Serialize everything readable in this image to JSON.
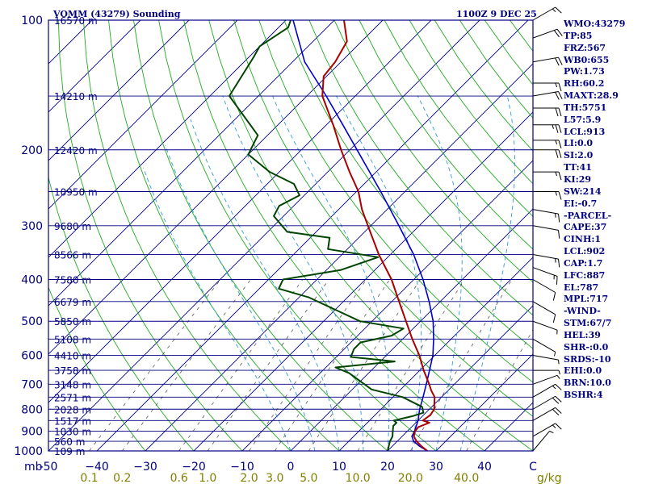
{
  "header": {
    "station": "VOMM (43279) Sounding",
    "time": "1100Z  9 DEC 25"
  },
  "colors": {
    "frame": "#000080",
    "dry_adiabat": "#22aa22",
    "moist_adiabat": "#3399dd",
    "mixing_ratio": "#444444",
    "temperature": "#aa0000",
    "dewpoint": "#004400",
    "parcel": "#0000cc",
    "moisture_label": "#808000"
  },
  "chart_data": {
    "type": "skew-t",
    "pressure_range": [
      1000,
      100
    ],
    "temp_range_bottom": [
      -50,
      50
    ],
    "pressure_ticks": [
      "100",
      "200",
      "300",
      "400",
      "500",
      "600",
      "700",
      "800",
      "900",
      "1000"
    ],
    "pressure_label_values": [
      100,
      200,
      300,
      400,
      500,
      600,
      700,
      800,
      900,
      1000
    ],
    "height_levels": [
      {
        "p": 100,
        "label": "16570 m"
      },
      {
        "p": 150,
        "label": "14210 m"
      },
      {
        "p": 200,
        "label": "12420 m"
      },
      {
        "p": 250,
        "label": "10950 m"
      },
      {
        "p": 300,
        "label": "9680 m"
      },
      {
        "p": 350,
        "label": "8566 m"
      },
      {
        "p": 400,
        "label": "7580 m"
      },
      {
        "p": 450,
        "label": "6679 m"
      },
      {
        "p": 500,
        "label": "5850 m"
      },
      {
        "p": 550,
        "label": "5108 m"
      },
      {
        "p": 600,
        "label": "4410 m"
      },
      {
        "p": 650,
        "label": "3758 m"
      },
      {
        "p": 700,
        "label": "3148 m"
      },
      {
        "p": 750,
        "label": "2571 m"
      },
      {
        "p": 800,
        "label": "2028 m"
      },
      {
        "p": 850,
        "label": "1517 m"
      },
      {
        "p": 900,
        "label": "1030 m"
      },
      {
        "p": 950,
        "label": "560 m"
      },
      {
        "p": 1000,
        "label": "109 m"
      }
    ],
    "temp_ticks": [
      {
        "t": -50,
        "label": "-50"
      },
      {
        "t": -40,
        "label": "−40"
      },
      {
        "t": -30,
        "label": "−30"
      },
      {
        "t": -20,
        "label": "−20"
      },
      {
        "t": -10,
        "label": "−10"
      },
      {
        "t": 0,
        "label": "0"
      },
      {
        "t": 10,
        "label": "10"
      },
      {
        "t": 20,
        "label": "20"
      },
      {
        "t": 30,
        "label": "30"
      },
      {
        "t": 40,
        "label": "40"
      },
      {
        "t": 50,
        "label": "C"
      }
    ],
    "pressure_unit": "mb",
    "mixing_ratio_unit": "g/kg",
    "mixing_ratios": [
      {
        "w": 0.1,
        "label": "0.1"
      },
      {
        "w": 0.2,
        "label": "0.2"
      },
      {
        "w": 0.6,
        "label": "0.6"
      },
      {
        "w": 1.0,
        "label": "1.0"
      },
      {
        "w": 2.0,
        "label": "2.0"
      },
      {
        "w": 3.0,
        "label": "3.0"
      },
      {
        "w": 5.0,
        "label": "5.0"
      },
      {
        "w": 10.0,
        "label": "10.0"
      },
      {
        "w": 20.0,
        "label": "20.0"
      },
      {
        "w": 40.0,
        "label": "40.0"
      }
    ],
    "temperature": [
      [
        1000,
        28.2
      ],
      [
        975,
        26.0
      ],
      [
        950,
        24.0
      ],
      [
        925,
        22.4
      ],
      [
        900,
        21.6
      ],
      [
        880,
        21.4
      ],
      [
        860,
        22.8
      ],
      [
        850,
        21.0
      ],
      [
        825,
        21.4
      ],
      [
        800,
        21.0
      ],
      [
        775,
        19.8
      ],
      [
        750,
        18.6
      ],
      [
        725,
        16.6
      ],
      [
        700,
        14.8
      ],
      [
        650,
        10.8
      ],
      [
        600,
        6.8
      ],
      [
        550,
        2.0
      ],
      [
        500,
        -3.0
      ],
      [
        450,
        -8.5
      ],
      [
        400,
        -14.6
      ],
      [
        350,
        -22.4
      ],
      [
        300,
        -30.6
      ],
      [
        275,
        -35.2
      ],
      [
        250,
        -39.6
      ],
      [
        225,
        -45.5
      ],
      [
        200,
        -51.8
      ],
      [
        175,
        -58.6
      ],
      [
        150,
        -66.8
      ],
      [
        135,
        -70.6
      ],
      [
        125,
        -71.2
      ],
      [
        112,
        -73.0
      ],
      [
        100,
        -78.0
      ]
    ],
    "dewpoint": [
      [
        1000,
        20.0
      ],
      [
        950,
        18.5
      ],
      [
        925,
        18.0
      ],
      [
        900,
        17.0
      ],
      [
        875,
        16.0
      ],
      [
        860,
        16.0
      ],
      [
        850,
        15.0
      ],
      [
        830,
        18.0
      ],
      [
        815,
        19.5
      ],
      [
        790,
        18.0
      ],
      [
        750,
        12.0
      ],
      [
        720,
        4.0
      ],
      [
        660,
        -4.0
      ],
      [
        640,
        -8.0
      ],
      [
        620,
        3.0
      ],
      [
        605,
        -7.0
      ],
      [
        580,
        -8.0
      ],
      [
        560,
        -8.0
      ],
      [
        540,
        -3.0
      ],
      [
        520,
        -2.0
      ],
      [
        500,
        -12.5
      ],
      [
        470,
        -20.0
      ],
      [
        440,
        -28.0
      ],
      [
        420,
        -36.0
      ],
      [
        400,
        -37.0
      ],
      [
        380,
        -27.0
      ],
      [
        355,
        -22.0
      ],
      [
        340,
        -34.0
      ],
      [
        320,
        -36.0
      ],
      [
        310,
        -46.0
      ],
      [
        285,
        -52.0
      ],
      [
        270,
        -53.0
      ],
      [
        255,
        -51.0
      ],
      [
        240,
        -54.5
      ],
      [
        225,
        -62.0
      ],
      [
        205,
        -70.0
      ],
      [
        185,
        -72.0
      ],
      [
        150,
        -86.0
      ],
      [
        122,
        -89.0
      ],
      [
        115,
        -90.0
      ],
      [
        104,
        -88.0
      ],
      [
        100,
        -89.0
      ]
    ],
    "parcel": [
      [
        1000,
        28.2
      ],
      [
        975,
        25.6
      ],
      [
        950,
        23.4
      ],
      [
        925,
        22.0
      ],
      [
        900,
        21.5
      ],
      [
        850,
        20.0
      ],
      [
        800,
        18.0
      ],
      [
        750,
        16.2
      ],
      [
        700,
        14.2
      ],
      [
        650,
        12.0
      ],
      [
        600,
        9.6
      ],
      [
        550,
        6.4
      ],
      [
        500,
        2.6
      ],
      [
        450,
        -2.3
      ],
      [
        400,
        -8.1
      ],
      [
        350,
        -15.2
      ],
      [
        300,
        -24.2
      ],
      [
        250,
        -35.0
      ],
      [
        200,
        -48.5
      ],
      [
        175,
        -56.6
      ],
      [
        150,
        -66.0
      ],
      [
        125,
        -77.5
      ],
      [
        100,
        -88.5
      ]
    ],
    "wind_barbs": [
      {
        "p": 100,
        "dir": 60,
        "spd": 15
      },
      {
        "p": 110,
        "dir": 70,
        "spd": 20
      },
      {
        "p": 125,
        "dir": 80,
        "spd": 20
      },
      {
        "p": 140,
        "dir": 90,
        "spd": 15
      },
      {
        "p": 150,
        "dir": 80,
        "spd": 20
      },
      {
        "p": 160,
        "dir": 90,
        "spd": 20
      },
      {
        "p": 175,
        "dir": 90,
        "spd": 25
      },
      {
        "p": 190,
        "dir": 90,
        "spd": 15
      },
      {
        "p": 200,
        "dir": 90,
        "spd": 20
      },
      {
        "p": 225,
        "dir": 90,
        "spd": 15
      },
      {
        "p": 250,
        "dir": 90,
        "spd": 15
      },
      {
        "p": 275,
        "dir": 100,
        "spd": 15
      },
      {
        "p": 300,
        "dir": 100,
        "spd": 10
      },
      {
        "p": 350,
        "dir": 100,
        "spd": 15
      },
      {
        "p": 375,
        "dir": 110,
        "spd": 15
      },
      {
        "p": 400,
        "dir": 120,
        "spd": 10
      },
      {
        "p": 450,
        "dir": 120,
        "spd": 10
      },
      {
        "p": 500,
        "dir": 110,
        "spd": 5
      },
      {
        "p": 550,
        "dir": 120,
        "spd": 5
      },
      {
        "p": 600,
        "dir": 100,
        "spd": 5
      },
      {
        "p": 650,
        "dir": 90,
        "spd": 5
      },
      {
        "p": 700,
        "dir": 70,
        "spd": 5
      },
      {
        "p": 750,
        "dir": 60,
        "spd": 15
      },
      {
        "p": 800,
        "dir": 60,
        "spd": 20
      },
      {
        "p": 850,
        "dir": 60,
        "spd": 20
      },
      {
        "p": 925,
        "dir": 60,
        "spd": 15
      },
      {
        "p": 1000,
        "dir": 40,
        "spd": 5
      }
    ]
  },
  "indices": [
    "WMO:43279",
    "TP:85",
    "FRZ:567",
    "WB0:655",
    "PW:1.73",
    "RH:60.2",
    "MAXT:28.9",
    "TH:5751",
    "L57:5.9",
    "LCL:913",
    "LI:0.0",
    "SI:2.0",
    "TT:41",
    "KI:29",
    "SW:214",
    "EI:-0.7",
    "-PARCEL-",
    "CAPE:37",
    "CINH:1",
    "LCL:902",
    "CAP:1.7",
    "LFC:887",
    "EL:787",
    "MPL:717",
    "-WIND-",
    "STM:67/7",
    "HEL:39",
    "SHR-:0.0",
    "SRDS:-10",
    "EHI:0.0",
    "BRN:10.0",
    "BSHR:4"
  ]
}
